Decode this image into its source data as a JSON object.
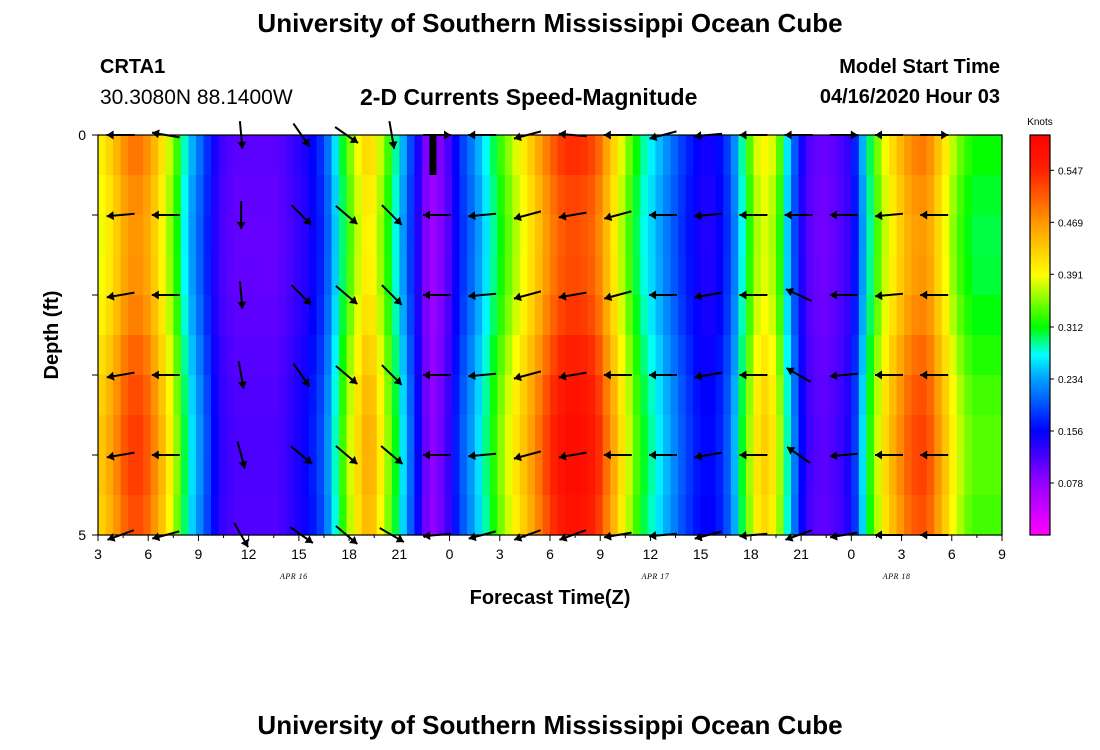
{
  "header": {
    "title": "University of Southern Mississippi Ocean Cube",
    "station_id": "CRTA1",
    "station_coords": "30.3080N 88.1400W",
    "plot_title": "2-D Currents Speed-Magnitude",
    "model_start_label": "Model Start Time",
    "model_start_value": "04/16/2020 Hour 03"
  },
  "footer": {
    "title": "University of Southern Mississippi Ocean Cube"
  },
  "chart_data": {
    "type": "heatmap",
    "title": "2-D Currents Speed-Magnitude",
    "xlabel": "Forecast Time(Z)",
    "ylabel": "Depth (ft)",
    "y_range": [
      0,
      5
    ],
    "y_tick_labels": [
      "0",
      "5"
    ],
    "x_tick_labels": [
      "3",
      "6",
      "9",
      "12",
      "15",
      "18",
      "21",
      "0",
      "3",
      "6",
      "9",
      "12",
      "15",
      "18",
      "21",
      "0",
      "3",
      "6",
      "9"
    ],
    "date_labels": [
      "APR 16",
      "APR 17",
      "APR 18"
    ],
    "date_label_hours": [
      13,
      37,
      53
    ],
    "colorbar": {
      "unit": "Knots",
      "ticks": [
        "0.547",
        "0.469",
        "0.391",
        "0.312",
        "0.234",
        "0.156",
        "0.078"
      ],
      "tick_values": [
        0.547,
        0.469,
        0.391,
        0.312,
        0.234,
        0.156,
        0.078
      ],
      "range": [
        0.0,
        0.6
      ]
    },
    "speed_time_profile": [
      [
        0,
        0.4
      ],
      [
        1,
        0.44
      ],
      [
        2,
        0.5
      ],
      [
        3,
        0.5
      ],
      [
        4,
        0.44
      ],
      [
        5,
        0.36
      ],
      [
        6,
        0.26
      ],
      [
        7,
        0.2
      ],
      [
        8,
        0.13
      ],
      [
        9,
        0.11
      ],
      [
        10,
        0.11
      ],
      [
        11,
        0.11
      ],
      [
        12,
        0.11
      ],
      [
        13,
        0.13
      ],
      [
        14,
        0.15
      ],
      [
        15,
        0.19
      ],
      [
        16,
        0.29
      ],
      [
        17,
        0.38
      ],
      [
        18,
        0.44
      ],
      [
        19,
        0.36
      ],
      [
        20,
        0.27
      ],
      [
        21,
        0.17
      ],
      [
        22,
        0.07
      ],
      [
        23,
        0.1
      ],
      [
        24,
        0.18
      ],
      [
        25,
        0.23
      ],
      [
        26,
        0.29
      ],
      [
        27,
        0.35
      ],
      [
        28,
        0.4
      ],
      [
        29,
        0.45
      ],
      [
        30,
        0.51
      ],
      [
        31,
        0.55
      ],
      [
        32,
        0.55
      ],
      [
        33,
        0.53
      ],
      [
        34,
        0.45
      ],
      [
        35,
        0.37
      ],
      [
        36,
        0.3
      ],
      [
        37,
        0.26
      ],
      [
        38,
        0.22
      ],
      [
        39,
        0.18
      ],
      [
        40,
        0.15
      ],
      [
        41,
        0.15
      ],
      [
        42,
        0.2
      ],
      [
        43,
        0.32
      ],
      [
        44,
        0.41
      ],
      [
        45,
        0.38
      ],
      [
        46,
        0.23
      ],
      [
        47,
        0.12
      ],
      [
        48,
        0.1
      ],
      [
        49,
        0.11
      ],
      [
        50,
        0.14
      ],
      [
        51,
        0.28
      ],
      [
        52,
        0.38
      ],
      [
        53,
        0.44
      ],
      [
        54,
        0.49
      ],
      [
        55,
        0.5
      ],
      [
        56,
        0.43
      ],
      [
        57,
        0.36
      ],
      [
        58,
        0.32
      ],
      [
        59,
        0.32
      ],
      [
        60,
        0.32
      ]
    ],
    "vector_depths": [
      0,
      1,
      2,
      3,
      4,
      5
    ],
    "vector_times": [
      1.5,
      4.5,
      9.5,
      13.5,
      16.5,
      19.5,
      22.5,
      25.5,
      28.5,
      31.5,
      34.5,
      37.5,
      40.5,
      43.5,
      46.5,
      49.5,
      52.5,
      55.5
    ],
    "vector_directions_deg": [
      [
        180,
        190,
        85,
        55,
        35,
        80,
        0,
        180,
        165,
        185,
        180,
        165,
        175,
        180,
        180,
        0,
        180,
        0
      ],
      [
        175,
        180,
        90,
        45,
        40,
        45,
        180,
        175,
        165,
        170,
        165,
        180,
        175,
        180,
        180,
        180,
        175,
        180
      ],
      [
        170,
        180,
        85,
        45,
        40,
        45,
        180,
        175,
        165,
        170,
        165,
        180,
        170,
        180,
        205,
        180,
        175,
        180
      ],
      [
        170,
        180,
        80,
        55,
        40,
        45,
        180,
        175,
        165,
        170,
        180,
        180,
        170,
        180,
        210,
        175,
        180,
        180
      ],
      [
        170,
        180,
        75,
        40,
        40,
        40,
        180,
        175,
        165,
        170,
        180,
        180,
        170,
        180,
        215,
        175,
        180,
        180
      ],
      [
        160,
        165,
        60,
        35,
        40,
        30,
        175,
        165,
        160,
        160,
        170,
        175,
        165,
        175,
        160,
        170,
        180,
        180
      ]
    ]
  }
}
